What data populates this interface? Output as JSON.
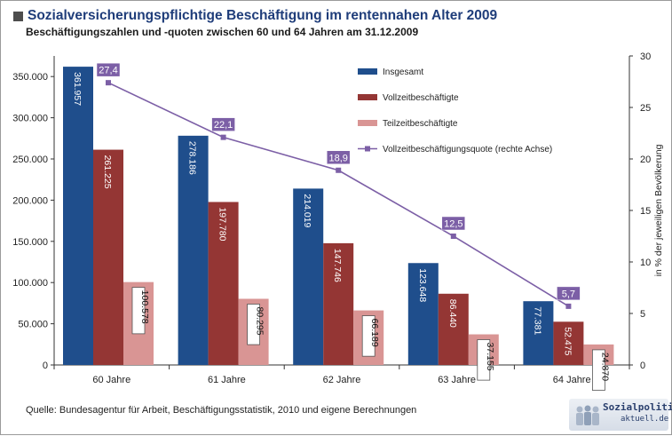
{
  "header": {
    "title": "Sozialversicherungspflichtige Beschäftigung im rentennahen Alter 2009",
    "subtitle": "Beschäftigungszahlen und -quoten zwischen 60 und 64 Jahren am 31.12.2009"
  },
  "footer": {
    "source": "Quelle: Bundesagentur für Arbeit, Beschäftigungsstatistik, 2010 und eigene Berechnungen"
  },
  "logo": {
    "line1": "Sozialpolitik-",
    "line2": "aktuell.de"
  },
  "colors": {
    "insgesamt": "#1f4e8c",
    "vollzeit": "#943634",
    "teilzeit": "#d99594",
    "quote": "#7c5fa6",
    "quote_label_bg": "#7c5fa6",
    "axis": "#333333"
  },
  "chart_data": {
    "type": "bar",
    "categories": [
      "60 Jahre",
      "61 Jahre",
      "62 Jahre",
      "63 Jahre",
      "64 Jahre"
    ],
    "series": [
      {
        "name": "Insgesamt",
        "values": [
          361957,
          278186,
          214019,
          123648,
          77381
        ],
        "labels": [
          "361.957",
          "278.186",
          "214.019",
          "123.648",
          "77.381"
        ]
      },
      {
        "name": "Vollzeitbeschäftigte",
        "values": [
          261225,
          197780,
          147746,
          86440,
          52475
        ],
        "labels": [
          "261.225",
          "197.780",
          "147.746",
          "86.440",
          "52.475"
        ]
      },
      {
        "name": "Teilzeitbeschäftigte",
        "values": [
          100578,
          80295,
          66189,
          37155,
          24870
        ],
        "labels": [
          "100.578",
          "80.295",
          "66.189",
          "37.155",
          "24.870"
        ]
      }
    ],
    "line_series": {
      "name": "Vollzeitbeschäftigungsquote (rechte Achse)",
      "values": [
        27.4,
        22.1,
        18.9,
        12.5,
        5.7
      ],
      "labels": [
        "27,4",
        "22,1",
        "18,9",
        "12,5",
        "5,7"
      ]
    },
    "y_left": {
      "ylim": [
        0,
        375000
      ],
      "ticks": [
        0,
        50000,
        100000,
        150000,
        200000,
        250000,
        300000,
        350000
      ],
      "tick_labels": [
        "0",
        "50.000",
        "100.000",
        "150.000",
        "200.000",
        "250.000",
        "300.000",
        "350.000"
      ]
    },
    "y_right": {
      "ylim": [
        0,
        30
      ],
      "ticks": [
        0,
        5,
        10,
        15,
        20,
        25,
        30
      ],
      "tick_labels": [
        "0",
        "5",
        "10",
        "15",
        "20",
        "25",
        "30"
      ],
      "label": "in % der jeweiligen Bevölkerung"
    },
    "legend_position": "top-right",
    "grid": false
  }
}
